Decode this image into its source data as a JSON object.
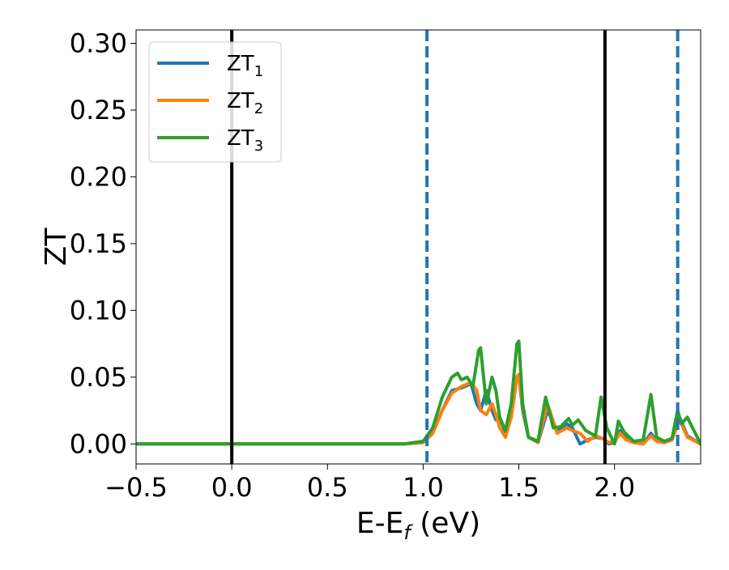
{
  "chart_data": {
    "type": "line",
    "title": "",
    "xlabel": "E-E",
    "xlabel_sub": "f",
    "xlabel_suffix": " (eV)",
    "ylabel": "ZT",
    "xlim": [
      -0.5,
      2.45
    ],
    "ylim": [
      -0.015,
      0.31
    ],
    "xticks": [
      -0.5,
      0.0,
      0.5,
      1.0,
      1.5,
      2.0
    ],
    "xtick_labels": [
      "−0.5",
      "0.0",
      "0.5",
      "1.0",
      "1.5",
      "2.0"
    ],
    "yticks": [
      0.0,
      0.05,
      0.1,
      0.15,
      0.2,
      0.25,
      0.3
    ],
    "ytick_labels": [
      "0.00",
      "0.05",
      "0.10",
      "0.15",
      "0.20",
      "0.25",
      "0.30"
    ],
    "grid": false,
    "legend_position": "top-left",
    "vlines": [
      {
        "x": 0.0,
        "style": "solid",
        "color": "#000000"
      },
      {
        "x": 1.02,
        "style": "dashed",
        "color": "#1f77b4"
      },
      {
        "x": 1.95,
        "style": "solid",
        "color": "#000000"
      },
      {
        "x": 2.33,
        "style": "dashed",
        "color": "#1f77b4"
      }
    ],
    "series": [
      {
        "name": "ZT",
        "name_sub": "1",
        "color": "#1f77b4",
        "x": [
          -0.5,
          0.9,
          1.0,
          1.05,
          1.1,
          1.15,
          1.2,
          1.25,
          1.28,
          1.3,
          1.33,
          1.36,
          1.38,
          1.4,
          1.43,
          1.46,
          1.49,
          1.5,
          1.52,
          1.55,
          1.6,
          1.65,
          1.7,
          1.75,
          1.78,
          1.82,
          1.86,
          1.9,
          1.94,
          1.97,
          2.0,
          2.03,
          2.06,
          2.1,
          2.15,
          2.19,
          2.22,
          2.26,
          2.3,
          2.34,
          2.38,
          2.45
        ],
        "y": [
          0.0,
          0.0,
          0.001,
          0.008,
          0.025,
          0.04,
          0.042,
          0.045,
          0.03,
          0.025,
          0.04,
          0.025,
          0.018,
          0.02,
          0.008,
          0.02,
          0.05,
          0.052,
          0.025,
          0.005,
          0.001,
          0.025,
          0.01,
          0.015,
          0.012,
          0.0,
          0.003,
          0.005,
          0.004,
          0.0,
          0.001,
          0.01,
          0.004,
          0.002,
          0.0,
          0.008,
          0.002,
          0.001,
          0.004,
          0.02,
          0.006,
          0.0
        ]
      },
      {
        "name": "ZT",
        "name_sub": "2",
        "color": "#ff7f0e",
        "x": [
          -0.5,
          0.9,
          1.0,
          1.05,
          1.1,
          1.15,
          1.2,
          1.25,
          1.28,
          1.3,
          1.33,
          1.36,
          1.38,
          1.4,
          1.43,
          1.46,
          1.49,
          1.5,
          1.52,
          1.55,
          1.6,
          1.65,
          1.7,
          1.75,
          1.78,
          1.82,
          1.86,
          1.9,
          1.94,
          1.97,
          2.0,
          2.03,
          2.06,
          2.1,
          2.15,
          2.19,
          2.22,
          2.26,
          2.3,
          2.34,
          2.38,
          2.45
        ],
        "y": [
          0.0,
          0.0,
          0.001,
          0.008,
          0.025,
          0.038,
          0.043,
          0.046,
          0.04,
          0.025,
          0.022,
          0.03,
          0.022,
          0.012,
          0.005,
          0.02,
          0.05,
          0.052,
          0.028,
          0.005,
          0.001,
          0.03,
          0.008,
          0.012,
          0.01,
          0.008,
          0.002,
          0.006,
          0.004,
          0.001,
          0.002,
          0.008,
          0.003,
          0.001,
          0.0,
          0.006,
          0.002,
          0.001,
          0.003,
          0.018,
          0.005,
          0.0
        ]
      },
      {
        "name": "ZT",
        "name_sub": "3",
        "color": "#2ca02c",
        "x": [
          -0.5,
          0.9,
          1.0,
          1.05,
          1.1,
          1.15,
          1.18,
          1.2,
          1.23,
          1.26,
          1.29,
          1.3,
          1.33,
          1.36,
          1.38,
          1.4,
          1.43,
          1.46,
          1.49,
          1.5,
          1.52,
          1.55,
          1.6,
          1.64,
          1.68,
          1.72,
          1.76,
          1.78,
          1.81,
          1.85,
          1.9,
          1.93,
          1.96,
          2.0,
          2.02,
          2.05,
          2.1,
          2.15,
          2.19,
          2.22,
          2.26,
          2.3,
          2.33,
          2.35,
          2.38,
          2.45
        ],
        "y": [
          0.0,
          0.0,
          0.002,
          0.012,
          0.035,
          0.05,
          0.053,
          0.048,
          0.05,
          0.043,
          0.07,
          0.072,
          0.03,
          0.05,
          0.04,
          0.02,
          0.01,
          0.03,
          0.075,
          0.077,
          0.03,
          0.005,
          0.002,
          0.035,
          0.012,
          0.013,
          0.019,
          0.014,
          0.018,
          0.01,
          0.006,
          0.035,
          0.012,
          0.0,
          0.017,
          0.009,
          0.002,
          0.003,
          0.037,
          0.005,
          0.002,
          0.004,
          0.025,
          0.015,
          0.02,
          0.0
        ]
      }
    ]
  }
}
